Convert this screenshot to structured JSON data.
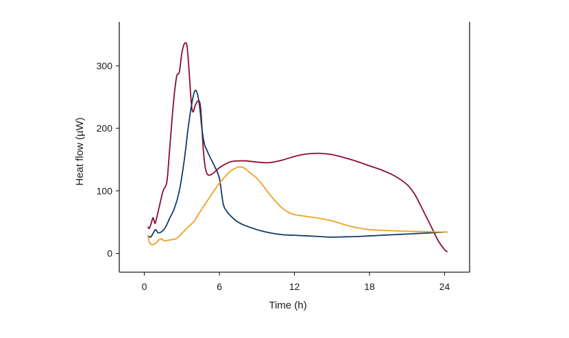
{
  "chart_data": {
    "type": "line",
    "xlabel": "Time (h)",
    "ylabel": "Heat flow (µW)",
    "xlim": [
      -2,
      26
    ],
    "ylim": [
      -30,
      370
    ],
    "xticks": [
      0,
      6,
      12,
      18,
      24
    ],
    "yticks": [
      0,
      100,
      200,
      300
    ],
    "grid": false,
    "legend": "none",
    "series": [
      {
        "color": "#8b0a2e",
        "x": [
          0.3,
          0.4,
          0.55,
          0.7,
          0.85,
          1.0,
          1.2,
          1.5,
          1.8,
          2.0,
          2.2,
          2.4,
          2.6,
          2.8,
          3.0,
          3.2,
          3.4,
          3.55,
          3.7,
          3.8,
          3.9,
          4.0,
          4.15,
          4.3,
          4.45,
          4.55,
          4.7,
          4.85,
          5.0,
          5.2,
          5.5,
          6.0,
          6.5,
          7.0,
          8.0,
          9.0,
          10.0,
          11.0,
          12.0,
          13.0,
          14.0,
          15.0,
          16.0,
          17.0,
          18.0,
          19.0,
          20.0,
          21.0,
          21.6,
          22.0,
          22.5,
          23.0,
          23.5,
          24.0,
          24.2
        ],
        "y": [
          42,
          40,
          48,
          57,
          48,
          58,
          75,
          100,
          114,
          160,
          210,
          255,
          284,
          290,
          320,
          335,
          333,
          300,
          255,
          232,
          226,
          232,
          240,
          244,
          240,
          220,
          170,
          140,
          128,
          125,
          128,
          137,
          143,
          147,
          148,
          146,
          145,
          149,
          155,
          159,
          160,
          158,
          153,
          147,
          140,
          133,
          124,
          110,
          95,
          80,
          60,
          40,
          20,
          6,
          3
        ]
      },
      {
        "color": "#0d3a6b",
        "x": [
          0.3,
          0.5,
          0.7,
          0.9,
          1.1,
          1.4,
          1.7,
          2.0,
          2.4,
          2.8,
          3.2,
          3.5,
          3.8,
          4.0,
          4.15,
          4.3,
          4.45,
          4.6,
          4.8,
          5.0,
          5.3,
          5.6,
          6.0,
          6.3,
          6.6,
          7.0,
          7.5,
          8.0,
          9.0,
          10.0,
          11.0,
          12.0,
          13.0,
          14.0,
          15.0,
          16.0,
          17.0,
          18.0,
          19.0,
          20.0,
          21.0,
          22.0,
          23.0,
          24.0,
          24.2
        ],
        "y": [
          28,
          26,
          32,
          38,
          33,
          35,
          42,
          55,
          72,
          100,
          150,
          200,
          240,
          258,
          260,
          250,
          230,
          200,
          175,
          165,
          152,
          140,
          120,
          80,
          67,
          58,
          50,
          45,
          38,
          33,
          30,
          29,
          28,
          27,
          26,
          26.5,
          27,
          28,
          29,
          30,
          31,
          32,
          33,
          34,
          34
        ]
      },
      {
        "color": "#f0a020",
        "x": [
          0.3,
          0.4,
          0.6,
          0.8,
          1.0,
          1.2,
          1.4,
          1.6,
          1.9,
          2.2,
          2.6,
          3.0,
          3.5,
          4.0,
          4.5,
          5.0,
          5.5,
          6.0,
          6.5,
          7.0,
          7.5,
          7.8,
          8.1,
          8.5,
          9.0,
          9.5,
          10.0,
          10.5,
          11.0,
          11.5,
          12.0,
          13.0,
          14.0,
          15.0,
          16.0,
          17.0,
          18.0,
          19.0,
          20.0,
          21.0,
          22.0,
          23.0,
          24.0,
          24.2
        ],
        "y": [
          28,
          18,
          14,
          15,
          18,
          22,
          23,
          20,
          21,
          22,
          24,
          32,
          42,
          52,
          68,
          83,
          98,
          112,
          124,
          133,
          138,
          138,
          135,
          128,
          120,
          108,
          95,
          83,
          73,
          66,
          62,
          59,
          56,
          52,
          46,
          41,
          38,
          37,
          36,
          35.5,
          35,
          34.5,
          34,
          34
        ]
      }
    ]
  }
}
